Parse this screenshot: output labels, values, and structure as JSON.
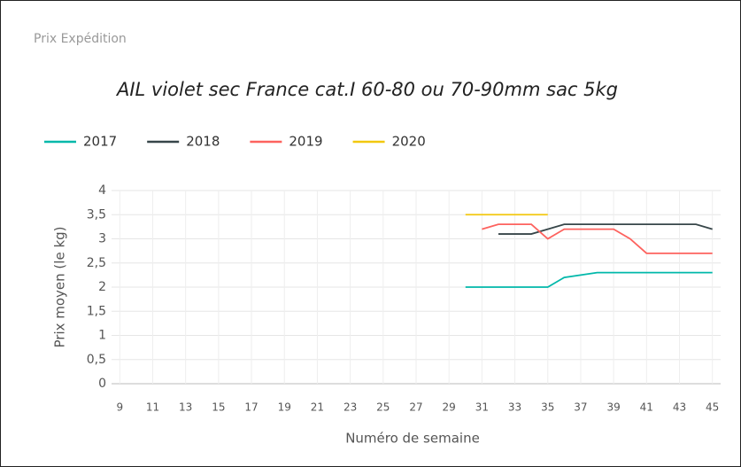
{
  "card_title": "Prix Expédition",
  "chart_data": {
    "type": "line",
    "title": "AIL violet sec France cat.I 60-80 ou 70-90mm sac 5kg",
    "x_label": "Numéro de semaine",
    "y_label": "Prix moyen  (le kg)",
    "x": [
      30,
      31,
      32,
      33,
      34,
      35,
      36,
      37,
      38,
      39,
      40,
      41,
      42,
      43,
      44,
      45
    ],
    "series": [
      {
        "name": "2017",
        "color": "#01B8AA",
        "values": [
          2,
          2,
          2,
          2,
          2,
          2,
          2.2,
          2.25,
          2.3,
          2.3,
          2.3,
          2.3,
          2.3,
          2.3,
          2.3,
          2.3
        ]
      },
      {
        "name": "2018",
        "color": "#374649",
        "values": [
          null,
          null,
          3.1,
          3.1,
          3.1,
          3.2,
          3.3,
          3.3,
          3.3,
          3.3,
          3.3,
          3.3,
          3.3,
          3.3,
          3.3,
          3.2
        ]
      },
      {
        "name": "2019",
        "color": "#FD625E",
        "values": [
          null,
          3.2,
          3.3,
          3.3,
          3.3,
          3.0,
          3.2,
          3.2,
          3.2,
          3.2,
          3.0,
          2.7,
          2.7,
          2.7,
          2.7,
          2.7
        ]
      },
      {
        "name": "2020",
        "color": "#F2C80F",
        "values": [
          3.5,
          3.5,
          3.5,
          3.5,
          3.5,
          3.5,
          null,
          null,
          null,
          null,
          null,
          null,
          null,
          null,
          null,
          null
        ]
      }
    ],
    "xlim": [
      8.5,
      45.5
    ],
    "xticks": [
      9,
      11,
      13,
      15,
      17,
      19,
      21,
      23,
      25,
      27,
      29,
      31,
      33,
      35,
      37,
      39,
      41,
      43,
      45
    ],
    "ylim": [
      0,
      4
    ],
    "yticks": [
      0,
      {
        "value": 0.5,
        "label": "0,5"
      },
      1,
      {
        "value": 1.5,
        "label": "1,5"
      },
      2,
      {
        "value": 2.5,
        "label": "2,5"
      },
      3,
      {
        "value": 3.5,
        "label": "3,5"
      },
      4
    ],
    "grid": true,
    "legend": "top-left"
  }
}
